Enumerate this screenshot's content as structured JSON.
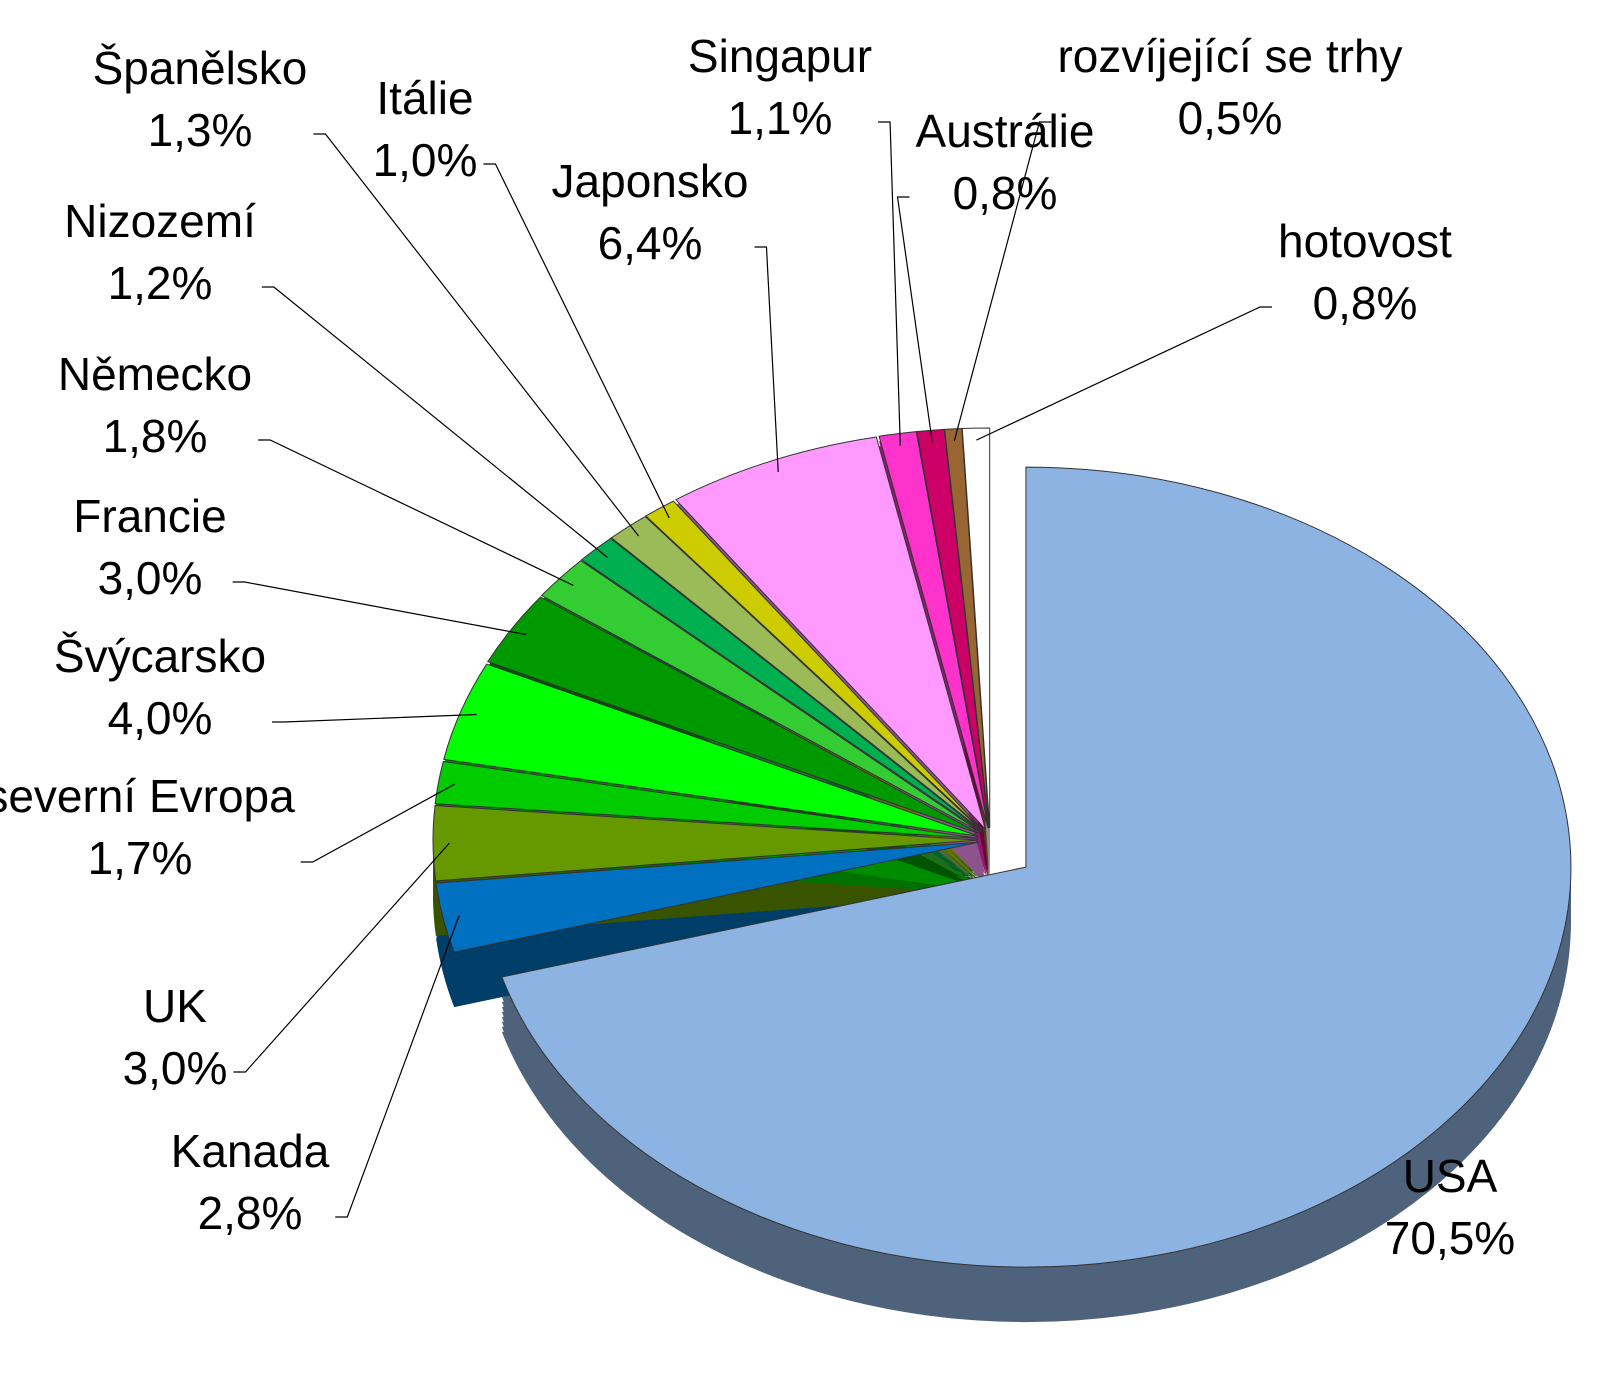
{
  "chart_data": {
    "type": "pie",
    "categories": [
      "USA",
      "Kanada",
      "UK",
      "severní Evropa",
      "Švýcarsko",
      "Francie",
      "Německo",
      "Nizozemí",
      "Španělsko",
      "Itálie",
      "Japonsko",
      "Singapur",
      "Austrálie",
      "rozvíjející se trhy",
      "hotovost"
    ],
    "values": [
      70.5,
      2.8,
      3.0,
      1.7,
      4.0,
      3.0,
      1.8,
      1.2,
      1.3,
      1.0,
      6.4,
      1.1,
      0.8,
      0.5,
      0.8
    ],
    "value_labels": [
      "70,5%",
      "2,8%",
      "3,0%",
      "1,7%",
      "4,0%",
      "3,0%",
      "1,8%",
      "1,2%",
      "1,3%",
      "1,0%",
      "6,4%",
      "1,1%",
      "0,8%",
      "0,5%",
      "0,8%"
    ],
    "colors": [
      "#8db3e2",
      "#0070c0",
      "#669900",
      "#00cc00",
      "#00ff00",
      "#009900",
      "#33cc33",
      "#00b050",
      "#9bbb59",
      "#cccc00",
      "#ff99ff",
      "#ff33cc",
      "#cc0066",
      "#996633",
      "#ffffff"
    ]
  }
}
